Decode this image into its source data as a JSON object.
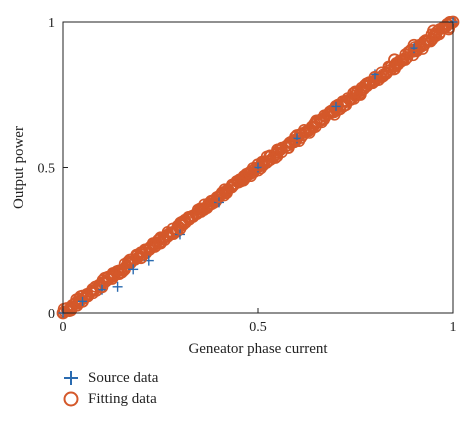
{
  "chart_data": {
    "type": "scatter",
    "title": "",
    "xlabel": "Geneator phase current",
    "ylabel": "Output power",
    "xlim": [
      0,
      1
    ],
    "ylim": [
      0,
      1
    ],
    "xticks": [
      0,
      0.5,
      1
    ],
    "yticks": [
      0,
      0.5,
      1
    ],
    "xtick_labels": [
      "0",
      "0.5",
      "1"
    ],
    "ytick_labels": [
      "0",
      "0.5",
      "1"
    ],
    "grid": false,
    "legend_position": "below",
    "series": [
      {
        "name": "Source data",
        "marker": "plus",
        "color": "#2a6bb0",
        "x": [
          0.0,
          0.05,
          0.1,
          0.14,
          0.18,
          0.22,
          0.3,
          0.4,
          0.5,
          0.6,
          0.7,
          0.8,
          0.9,
          1.0
        ],
        "y": [
          0.0,
          0.04,
          0.08,
          0.09,
          0.15,
          0.18,
          0.27,
          0.38,
          0.5,
          0.6,
          0.71,
          0.82,
          0.91,
          1.0
        ]
      },
      {
        "name": "Fitting data",
        "marker": "circle",
        "color": "#d4582a",
        "x": [
          0.0,
          0.02,
          0.05,
          0.1,
          0.15,
          0.2,
          0.25,
          0.3,
          0.35,
          0.4,
          0.45,
          0.5,
          0.55,
          0.6,
          0.65,
          0.7,
          0.75,
          0.8,
          0.85,
          0.9,
          0.95,
          1.0
        ],
        "y": [
          0.0,
          0.01,
          0.04,
          0.09,
          0.14,
          0.19,
          0.24,
          0.29,
          0.35,
          0.4,
          0.45,
          0.51,
          0.56,
          0.61,
          0.66,
          0.71,
          0.76,
          0.81,
          0.87,
          0.92,
          0.97,
          1.0
        ]
      }
    ]
  }
}
